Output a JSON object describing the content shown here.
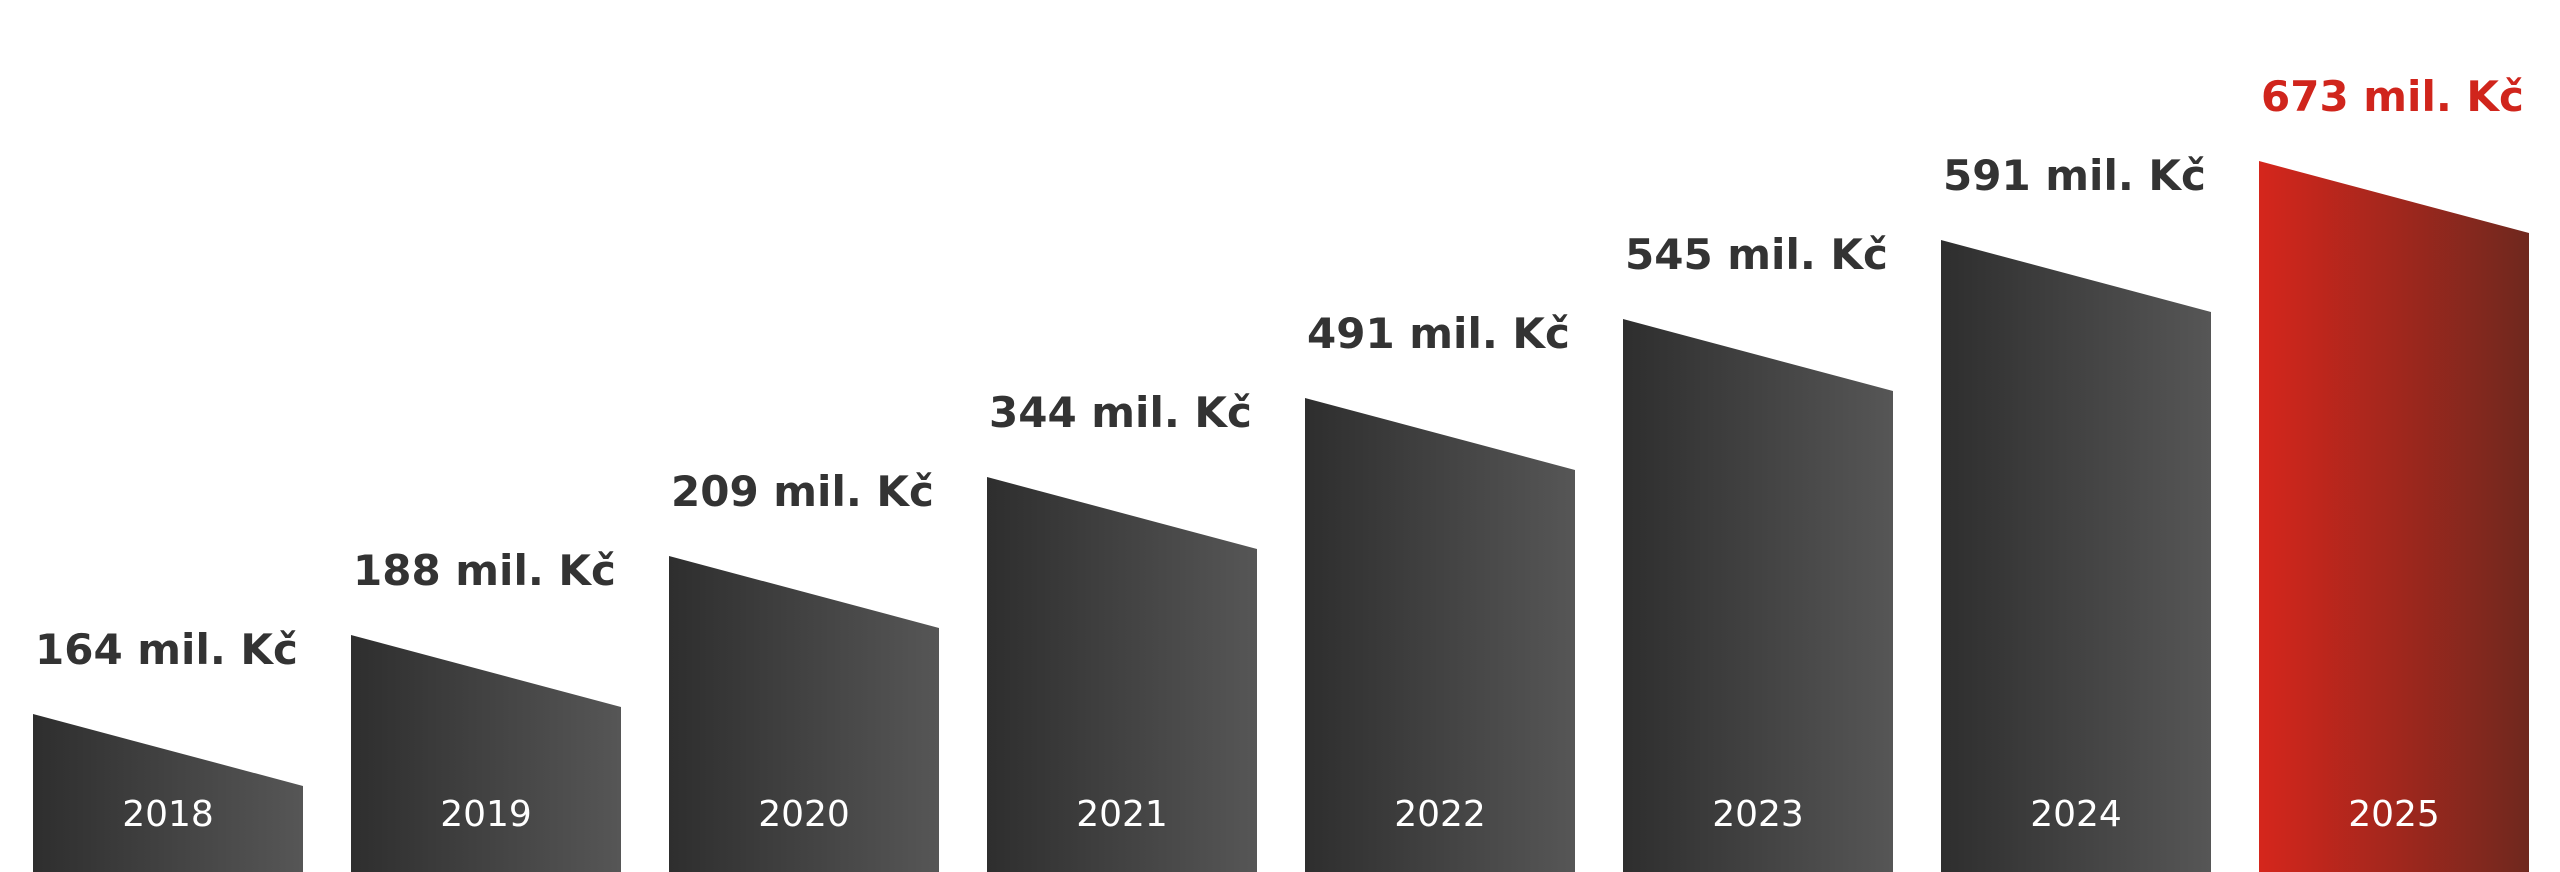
{
  "chart_data": {
    "type": "bar",
    "title": "",
    "xlabel": "",
    "ylabel": "",
    "categories": [
      "2018",
      "2019",
      "2020",
      "2021",
      "2022",
      "2023",
      "2024",
      "2025"
    ],
    "values": [
      164,
      188,
      209,
      344,
      491,
      545,
      591,
      673
    ],
    "value_labels": [
      "164 mil. Kč",
      "188 mil. Kč",
      "209 mil. Kč",
      "344 mil. Kč",
      "491 mil. Kč",
      "545 mil. Kč",
      "591 mil. Kč",
      "673 mil. Kč"
    ],
    "highlight_category": "2025",
    "grid": false,
    "legend": "none",
    "colors": {
      "bar_dark_start": "#2e2e2e",
      "bar_dark_end": "#565656",
      "bar_highlight_start": "#d5261c",
      "bar_highlight_end": "#6f281e",
      "label_dark": "#333333",
      "label_highlight": "#d0251c",
      "year_text": "#ffffff"
    }
  }
}
